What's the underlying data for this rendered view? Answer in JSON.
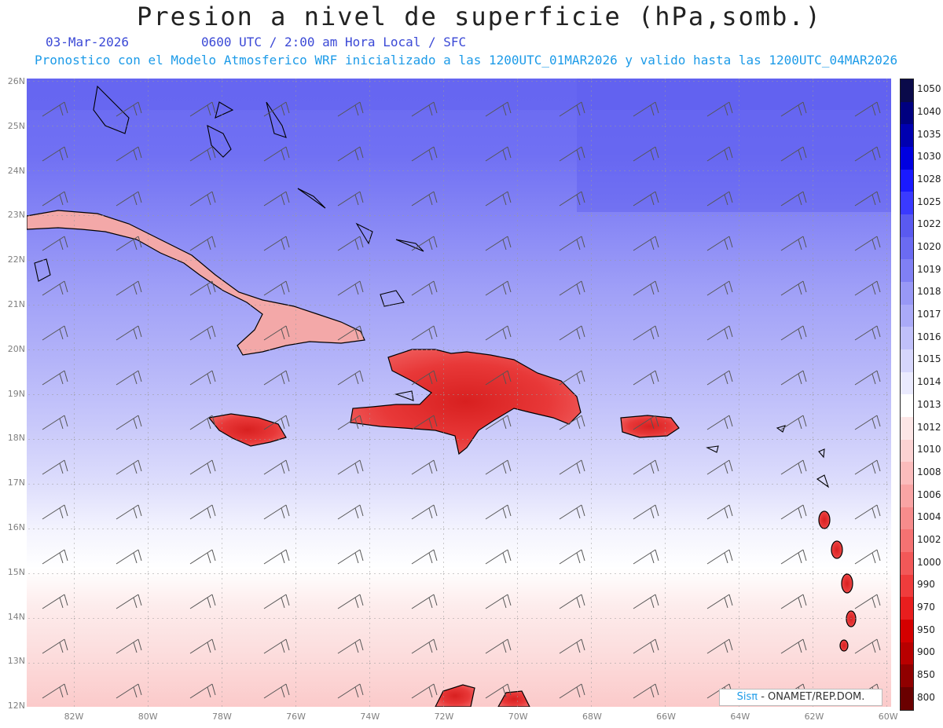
{
  "title": "Presion a nivel de superficie (hPa,somb.)",
  "date": "03-Mar-2026",
  "valid_time": "0600 UTC / 2:00 am Hora Local / SFC",
  "forecast_note": "Pronostico con el Modelo Atmosferico WRF inicializado a las 1200UTC_01MAR2026 y valido hasta las  1200UTC_04MAR2026",
  "lat_labels": [
    "26N",
    "25N",
    "24N",
    "23N",
    "22N",
    "21N",
    "20N",
    "19N",
    "18N",
    "17N",
    "16N",
    "15N",
    "14N",
    "13N",
    "12N"
  ],
  "lon_labels": [
    "82W",
    "80W",
    "78W",
    "76W",
    "74W",
    "72W",
    "70W",
    "68W",
    "66W",
    "64W",
    "62W",
    "60W"
  ],
  "colorbar": {
    "labels": [
      "1050",
      "1040",
      "1035",
      "1030",
      "1028",
      "1025",
      "1022",
      "1020",
      "1019",
      "1018",
      "1017",
      "1016",
      "1015",
      "1014",
      "1013",
      "1012",
      "1010",
      "1008",
      "1006",
      "1004",
      "1002",
      "1000",
      "990",
      "970",
      "950",
      "900",
      "850",
      "800"
    ],
    "colors": [
      "#0a0a4a",
      "#000080",
      "#0000b0",
      "#0000e0",
      "#1a1aff",
      "#3a3aff",
      "#5a5af0",
      "#6b6bf2",
      "#8080f4",
      "#9898f6",
      "#aaaaf8",
      "#c0c0fa",
      "#d6d6fc",
      "#eaeafe",
      "#ffffff",
      "#fde6e6",
      "#fcd2d2",
      "#fbbcbc",
      "#f9a4a4",
      "#f78c8c",
      "#f57272",
      "#f25858",
      "#ef3c3c",
      "#e81e1e",
      "#d40000",
      "#b80000",
      "#900000",
      "#6a0000"
    ]
  },
  "credit": {
    "logo": "Sisπ",
    "text": "- ONAMET/REP.DOM."
  }
}
